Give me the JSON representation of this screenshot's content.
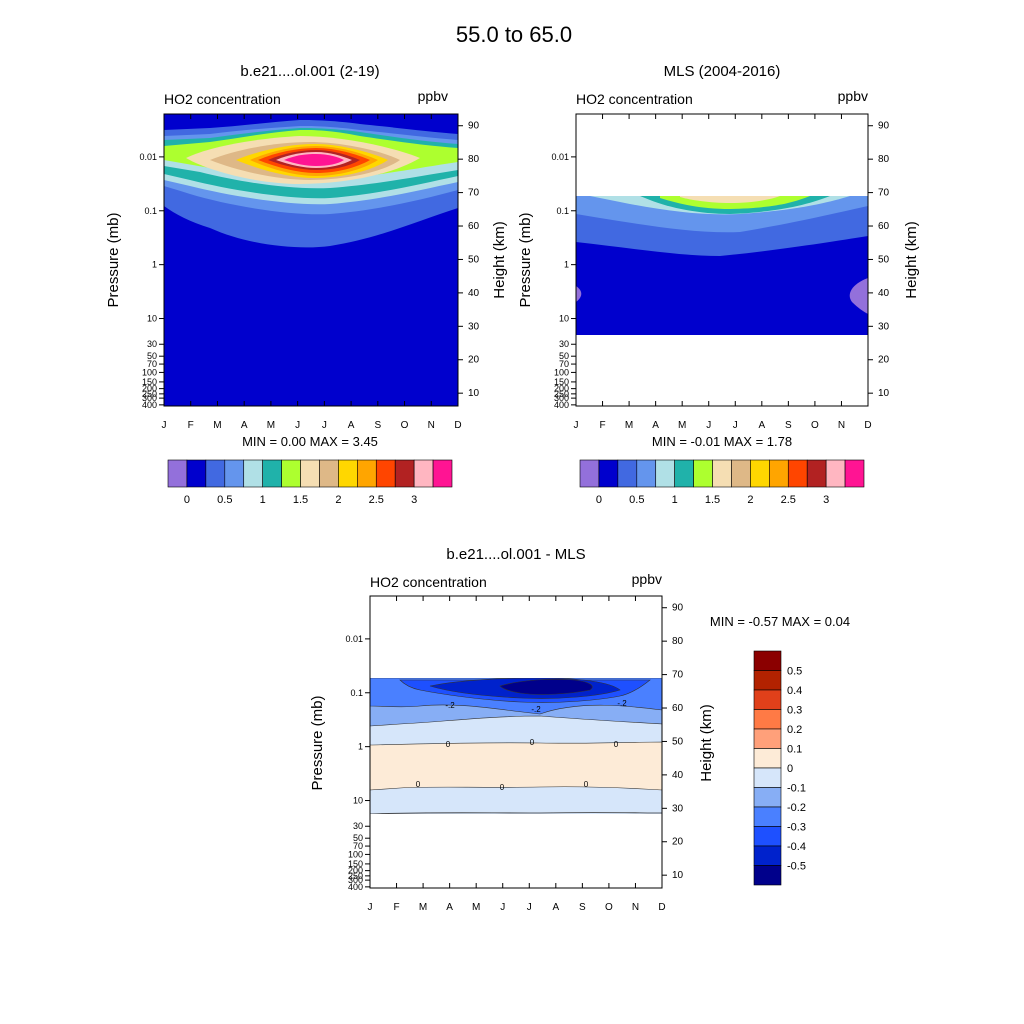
{
  "page_title": "55.0 to  65.0",
  "chart_data": [
    {
      "type": "heatmap",
      "title": "b.e21....ol.001 (2-19)",
      "subtitle_left": "HO2 concentration",
      "subtitle_right": "ppbv",
      "ylabel": "Pressure (mb)",
      "ylabel_right": "Height (km)",
      "x_categories": [
        "J",
        "F",
        "M",
        "A",
        "M",
        "J",
        "J",
        "A",
        "S",
        "O",
        "N",
        "D"
      ],
      "y_ticks_pressure": [
        "0.01",
        "0.1",
        "1",
        "10",
        "30",
        "50",
        "70",
        "100",
        "150",
        "200",
        "250",
        "300",
        "400"
      ],
      "y_ticks_height": [
        "90",
        "80",
        "70",
        "60",
        "50",
        "40",
        "30",
        "20",
        "10"
      ],
      "stats": "MIN =   0.00  MAX =   3.45",
      "min": 0.0,
      "max": 3.45,
      "colorbar_labels": [
        "0",
        "0.5",
        "1",
        "1.5",
        "2",
        "2.5",
        "3"
      ],
      "colorbar_colors": [
        "#9370db",
        "#0000cd",
        "#4169e1",
        "#6495ed",
        "#b0e0e6",
        "#20b2aa",
        "#adff2f",
        "#f5deb3",
        "#deb887",
        "#ffd700",
        "#ffa500",
        "#ff4500",
        "#b22222",
        "#ffb6c1",
        "#ff1493"
      ]
    },
    {
      "type": "heatmap",
      "title": "MLS (2004-2016)",
      "subtitle_left": "HO2 concentration",
      "subtitle_right": "ppbv",
      "ylabel": "Pressure (mb)",
      "ylabel_right": "Height (km)",
      "x_categories": [
        "J",
        "F",
        "M",
        "A",
        "M",
        "J",
        "J",
        "A",
        "S",
        "O",
        "N",
        "D"
      ],
      "y_ticks_pressure": [
        "0.01",
        "0.1",
        "1",
        "10",
        "30",
        "50",
        "70",
        "100",
        "150",
        "200",
        "250",
        "300",
        "400"
      ],
      "y_ticks_height": [
        "90",
        "80",
        "70",
        "60",
        "50",
        "40",
        "30",
        "20",
        "10"
      ],
      "stats": "MIN =  -0.01  MAX =   1.78",
      "min": -0.01,
      "max": 1.78,
      "colorbar_labels": [
        "0",
        "0.5",
        "1",
        "1.5",
        "2",
        "2.5",
        "3"
      ],
      "colorbar_colors": [
        "#9370db",
        "#0000cd",
        "#4169e1",
        "#6495ed",
        "#b0e0e6",
        "#20b2aa",
        "#adff2f",
        "#f5deb3",
        "#deb887",
        "#ffd700",
        "#ffa500",
        "#ff4500",
        "#b22222",
        "#ffb6c1",
        "#ff1493"
      ]
    },
    {
      "type": "heatmap",
      "title": "b.e21....ol.001 - MLS",
      "subtitle_left": "HO2 concentration",
      "subtitle_right": "ppbv",
      "ylabel": "Pressure (mb)",
      "ylabel_right": "Height (km)",
      "x_categories": [
        "J",
        "F",
        "M",
        "A",
        "M",
        "J",
        "J",
        "A",
        "S",
        "O",
        "N",
        "D"
      ],
      "y_ticks_pressure": [
        "0.01",
        "0.1",
        "1",
        "10",
        "30",
        "50",
        "70",
        "100",
        "150",
        "200",
        "250",
        "300",
        "400"
      ],
      "y_ticks_height": [
        "90",
        "80",
        "70",
        "60",
        "50",
        "40",
        "30",
        "20",
        "10"
      ],
      "stats": "MIN =  -0.57  MAX =   0.04",
      "min": -0.57,
      "max": 0.04,
      "contour_labels": [
        "-.2",
        "-.2",
        "-.2",
        "0",
        "0",
        "0",
        "0",
        "0",
        "0"
      ],
      "colorbar_labels": [
        "0.5",
        "0.4",
        "0.3",
        "0.2",
        "0.1",
        "0",
        "-0.1",
        "-0.2",
        "-0.3",
        "-0.4",
        "-0.5"
      ],
      "colorbar_colors": [
        "#8b0000",
        "#b22200",
        "#e0401a",
        "#ff7a45",
        "#ffa07a",
        "#fdebd7",
        "#d6e6fa",
        "#87aef5",
        "#4a80ff",
        "#1e50ff",
        "#0022cc",
        "#00008b"
      ]
    }
  ]
}
